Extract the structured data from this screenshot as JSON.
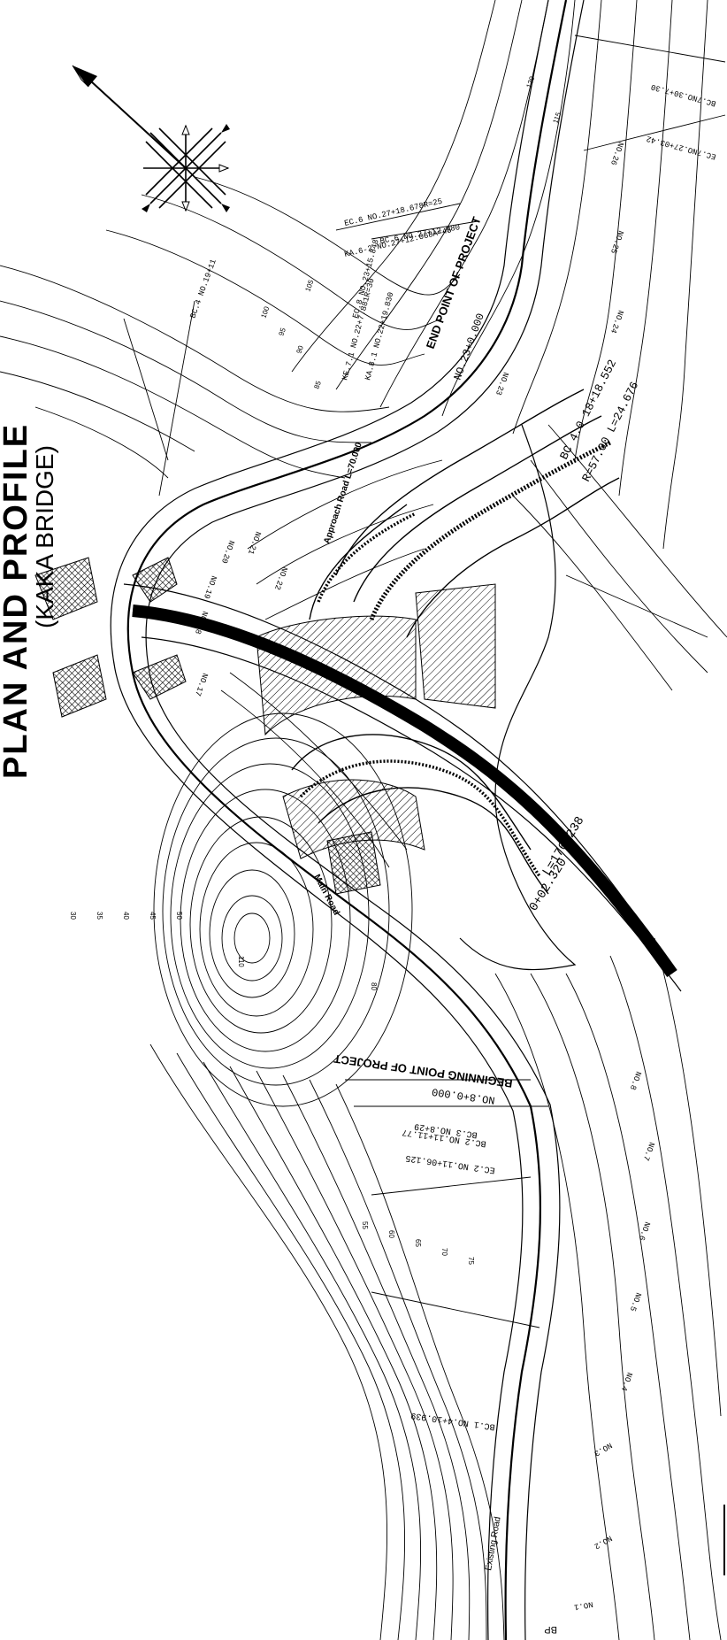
{
  "drawing": {
    "title_partial": "PLAN AND PROFILE",
    "subtitle": "(KAKA BRIDGE)"
  },
  "curve_labels": [
    "BC 4.0  18+18.552",
    "R=57.00  L=24.676",
    "L=176.238",
    "0+02.320",
    "EC.6 NO.27+18.678R=25",
    "BC.6 NO.27+12.980",
    "KA.6-2 NO.27+12.068A=45",
    "BC.7NO.30+7.30",
    "EC.7NO.27+03.42",
    "KE.7.1 NO.22+7.881R=30",
    "EC.8 NO.23+15.848",
    "KA.8.1 NO.22+19.830",
    "BC.1 NO.4+10.939",
    "EC.2 NO.11+06.125",
    "BC.2 NO.11+11.77",
    "BC.3 NO.8+29",
    "BC.4 NO.19+11"
  ],
  "point_labels": {
    "end_point": "END POINT OF PROJECT",
    "end_station": "NO.23+0.000",
    "begin_point": "BEGINNING POINT OF PROJECT",
    "begin_station": "NO.8+0.000",
    "approach": "Approach Road L=70.000",
    "main_road": "Main Road",
    "bp": "BP",
    "existing": "Existing Road"
  },
  "stations": [
    "NO.1",
    "NO.2",
    "NO.3",
    "NO.4",
    "NO.5",
    "NO.6",
    "NO.7",
    "NO.8",
    "NO.17",
    "NO.18",
    "NO.19",
    "NO.20",
    "NO.21",
    "NO.22",
    "NO.23",
    "NO.24",
    "NO.25",
    "NO.26"
  ],
  "elevations": [
    "30",
    "35",
    "40",
    "45",
    "50",
    "55",
    "60",
    "65",
    "70",
    "75",
    "80",
    "85",
    "90",
    "95",
    "100",
    "105",
    "110",
    "115",
    "120"
  ]
}
